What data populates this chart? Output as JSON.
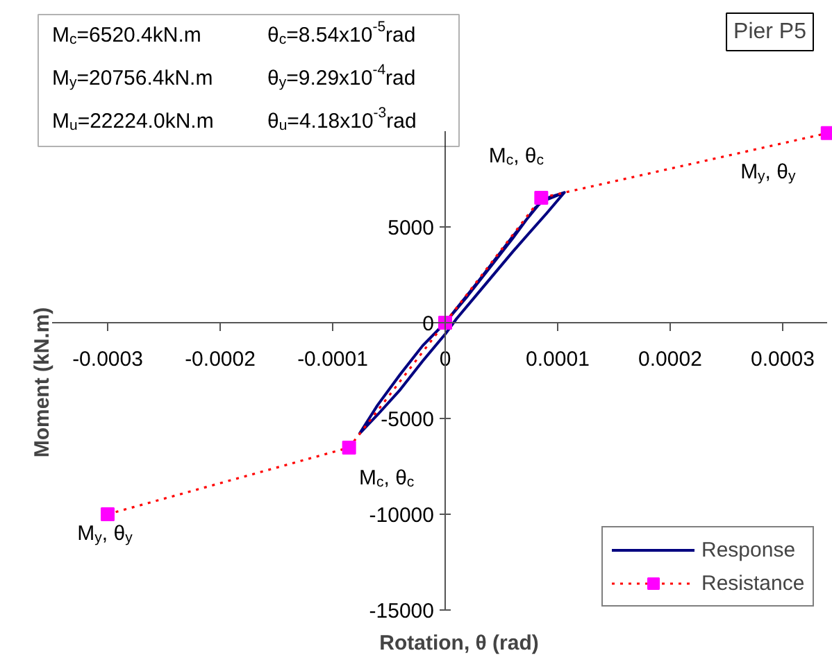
{
  "chart_data": {
    "type": "line",
    "title": "Pier P5",
    "xlabel": "Rotation, θ (rad)",
    "ylabel": "Moment (kN.m)",
    "xlim": [
      -0.00035,
      0.00034
    ],
    "ylim": [
      -15000,
      10000
    ],
    "xticks": [
      -0.0003,
      -0.0002,
      -0.0001,
      0,
      0.0001,
      0.0002,
      0.0003
    ],
    "yticks": [
      -15000,
      -10000,
      -5000,
      0,
      5000
    ],
    "grid": false,
    "legend": "bottom right",
    "series": [
      {
        "name": "Response",
        "color": "#000080",
        "line_style": "solid",
        "marker": "none",
        "x": [
          0,
          2e-05,
          4e-05,
          6e-05,
          8e-05,
          9e-05,
          0.000106,
          9e-05,
          6e-05,
          3e-05,
          1e-05,
          0,
          -2e-05,
          -4e-05,
          -6e-05,
          -7.6e-05,
          -6e-05,
          -4e-05,
          -2e-05,
          0,
          3e-05,
          6e-05,
          8.5e-05,
          0.000106
        ],
        "values": [
          0,
          1400,
          2900,
          4400,
          6000,
          6500,
          6800,
          5700,
          3700,
          1600,
          200,
          -600,
          -2000,
          -3500,
          -4800,
          -5780,
          -4300,
          -2700,
          -1200,
          0,
          2200,
          4500,
          6300,
          6800
        ]
      },
      {
        "name": "Resistance",
        "color": "#ff0000",
        "colors": [
          "#ff00ff",
          "#ff00ff",
          "#ff00ff",
          "#ff00ff",
          "#ff00ff"
        ],
        "line_style": "dotted",
        "marker": "square",
        "x": [
          -0.0003,
          -8.54e-05,
          0,
          8.54e-05,
          0.00034
        ],
        "values": [
          -10000,
          -6520.4,
          0,
          6520.4,
          9900
        ]
      }
    ],
    "annotations": [
      "M$_{c}$=6520.4kN.m",
      "θ$_{c}$=8.54x10$^{-5}$rad",
      "M$_{y}$=20756.4kN.m",
      "θ$_{y}$=9.29x10$^{-4}$rad",
      "M$_{u}$=22224.0kN.m",
      "θ$_{u}$=4.18x10$^{-3}$rad",
      {
        "text": "M$_{c}$, θ$_{c}$",
        "x": 8.54e-05,
        "y": 6520.4
      },
      {
        "text": "M$_{c}$, θ$_{c}$",
        "x": -8.54e-05,
        "y": -6520.4
      },
      {
        "text": "M$_{y}$, θ$_{y}$",
        "x": 0.00034,
        "y": 9900
      },
      {
        "text": "M$_{y}$, θ$_{y}$",
        "x": -0.0003,
        "y": -10000
      }
    ]
  }
}
